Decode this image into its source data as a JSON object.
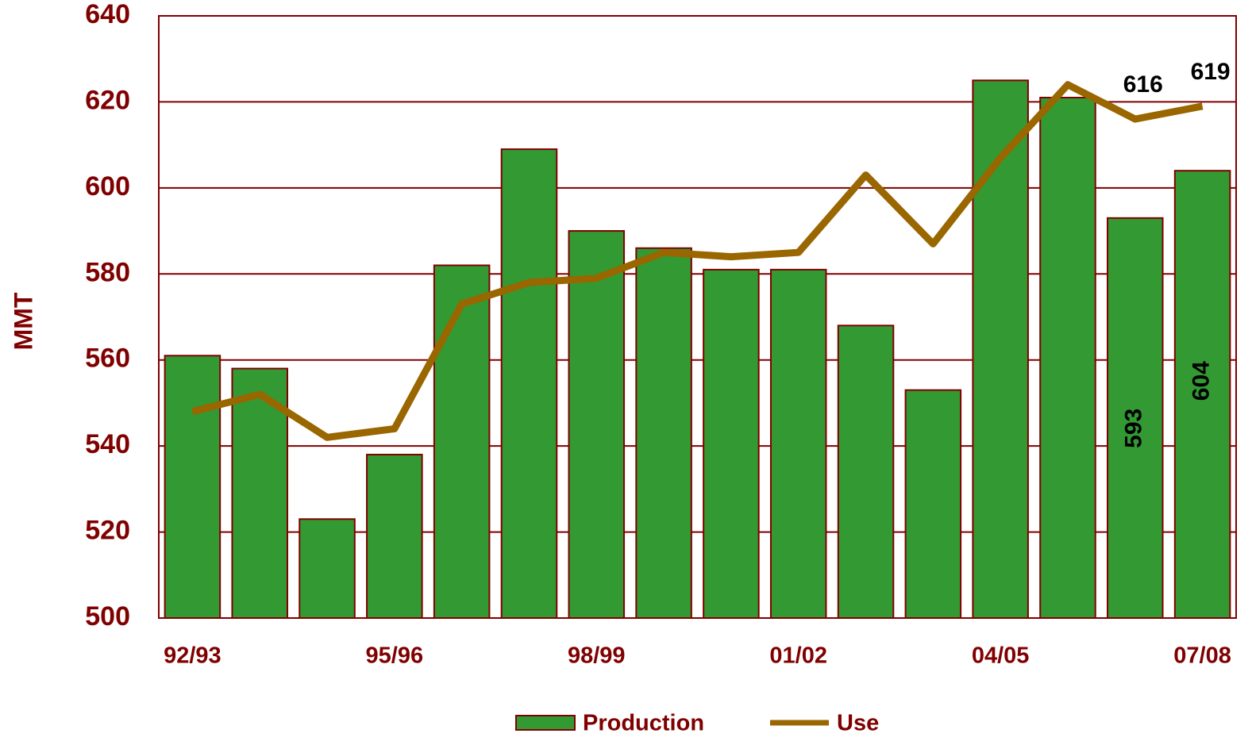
{
  "chart_data": {
    "type": "bar",
    "y_label": "MMT",
    "categories": [
      "92/93",
      null,
      null,
      "95/96",
      null,
      null,
      "98/99",
      null,
      null,
      "01/02",
      null,
      null,
      "04/05",
      null,
      null,
      "07/08"
    ],
    "series": [
      {
        "name": "Production",
        "type": "bar",
        "color": "#339933",
        "values": [
          561,
          558,
          523,
          538,
          582,
          609,
          590,
          586,
          581,
          581,
          568,
          553,
          625,
          621,
          593,
          604
        ],
        "value_labels": [
          null,
          null,
          null,
          null,
          null,
          null,
          null,
          null,
          null,
          null,
          null,
          null,
          null,
          null,
          "593",
          "604"
        ]
      },
      {
        "name": "Use",
        "type": "line",
        "color": "#996600",
        "values": [
          548,
          552,
          542,
          544,
          573,
          578,
          579,
          585,
          584,
          585,
          603,
          587,
          607,
          624,
          616,
          619
        ],
        "value_labels": [
          null,
          null,
          null,
          null,
          null,
          null,
          null,
          null,
          null,
          null,
          null,
          null,
          null,
          null,
          "616",
          "619"
        ]
      }
    ],
    "ylim": [
      500,
      640
    ],
    "yticks": [
      500,
      520,
      540,
      560,
      580,
      600,
      620,
      640
    ],
    "grid": true,
    "legend": "bottom"
  }
}
